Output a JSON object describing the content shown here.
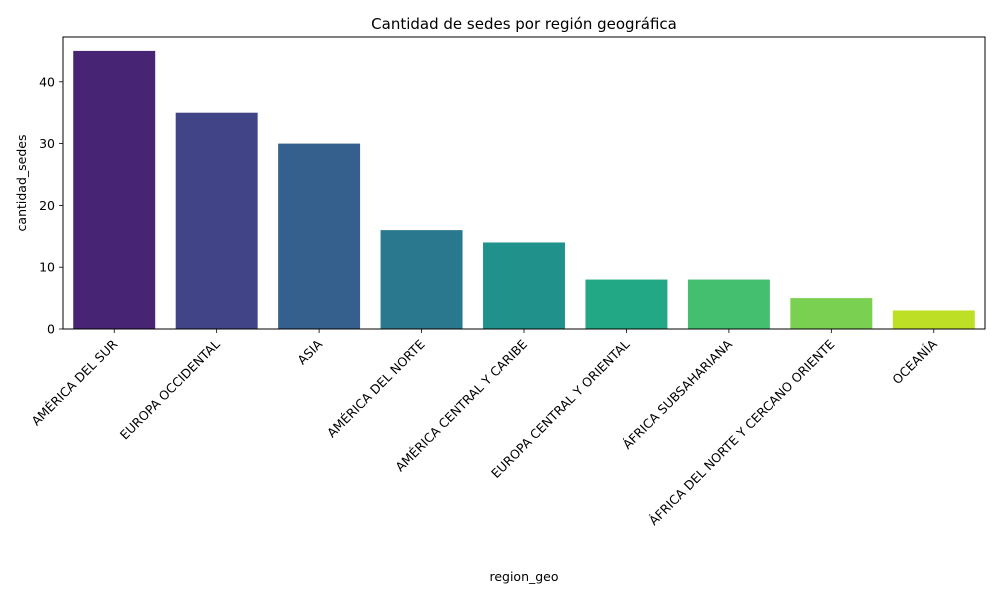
{
  "chart_data": {
    "type": "bar",
    "title": "Cantidad de sedes por región geográfica",
    "xlabel": "region_geo",
    "ylabel": "cantidad_sedes",
    "categories": [
      "AMÉRICA DEL SUR",
      "EUROPA OCCIDENTAL",
      "ASIA",
      "AMÉRICA DEL NORTE",
      "AMÉRICA CENTRAL Y CARIBE",
      "EUROPA CENTRAL Y ORIENTAL",
      "ÁFRICA SUBSAHARIANA",
      "ÁFRICA DEL NORTE Y CERCANO ORIENTE",
      "OCEANÍA"
    ],
    "values": [
      45,
      35,
      30,
      16,
      14,
      8,
      8,
      5,
      3
    ],
    "ylim": [
      0,
      47.25
    ],
    "yticks": [
      0,
      10,
      20,
      30,
      40
    ],
    "grid": false,
    "colors": [
      "#482475",
      "#414487",
      "#355f8d",
      "#2a788e",
      "#21918c",
      "#22a884",
      "#44bf70",
      "#7ad151",
      "#bddf26"
    ]
  }
}
